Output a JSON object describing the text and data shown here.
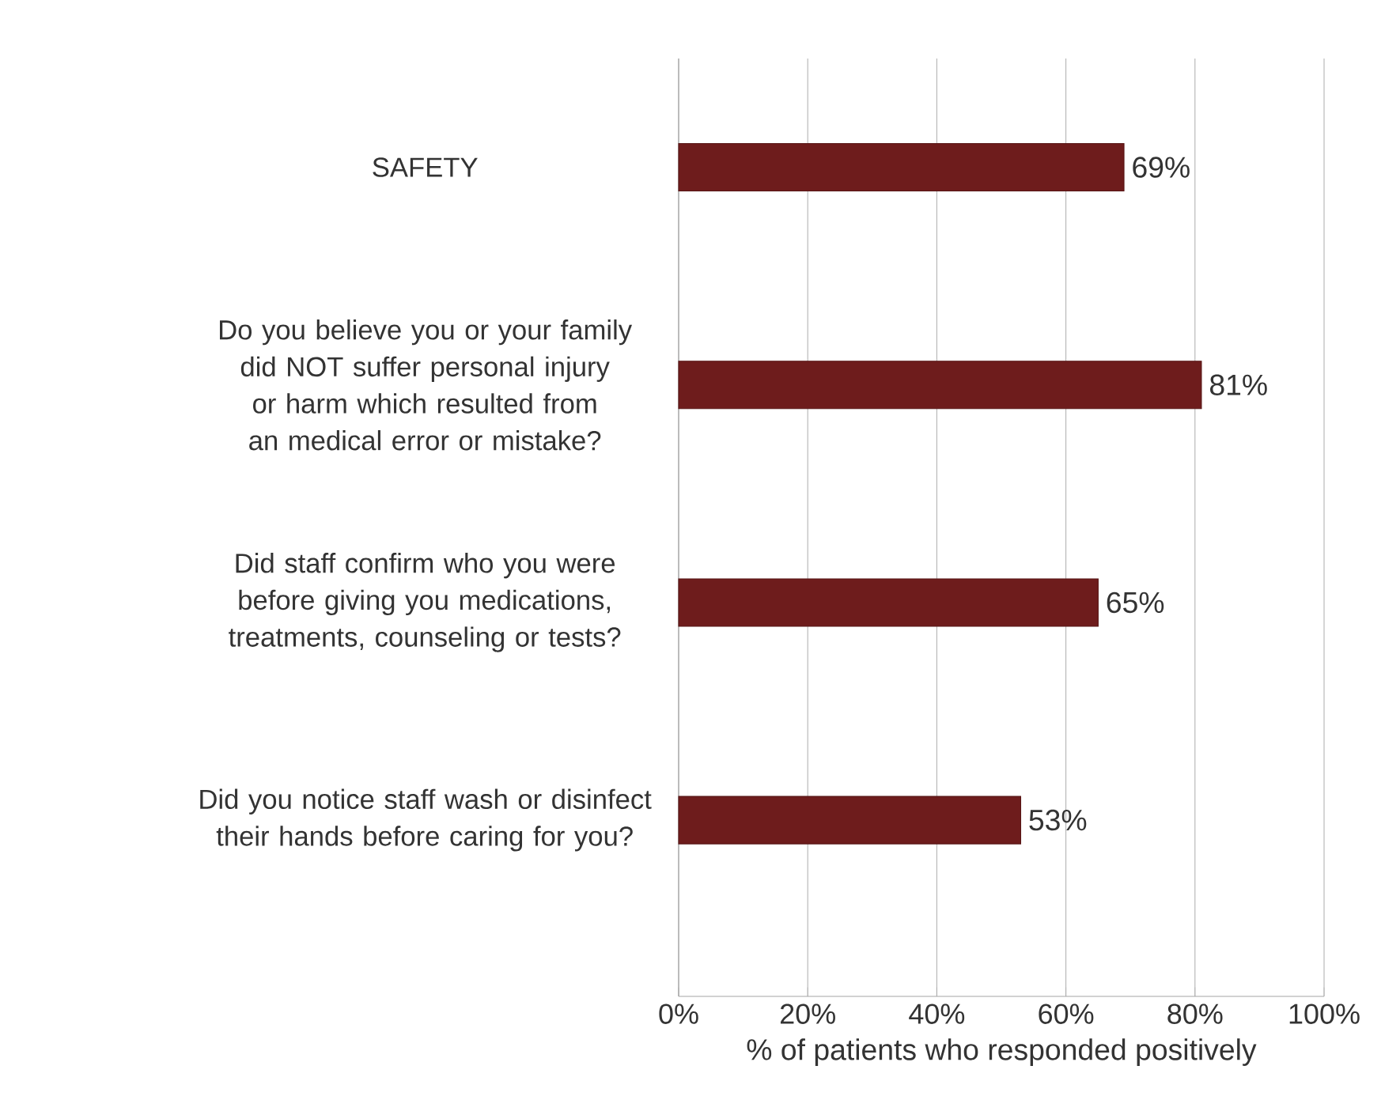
{
  "chart_data": {
    "type": "bar",
    "orientation": "horizontal",
    "xlabel": "% of patients who responded positively",
    "categories": [
      "SAFETY",
      "Do you believe you or your family did NOT suffer personal injury or harm which resulted from an medical error or mistake?",
      "Did staff confirm who you were before giving you medications, treatments, counseling or tests?",
      "Did you notice staff wash or disinfect their hands before caring for you?"
    ],
    "values": [
      69,
      81,
      65,
      53
    ],
    "color": "#6e1c1c",
    "value_labels": [
      "69%",
      "81%",
      "65%",
      "53%"
    ],
    "xlim": [
      0,
      100
    ],
    "xticks": [
      {
        "value": 0,
        "label": "0%"
      },
      {
        "value": 20,
        "label": "20%"
      },
      {
        "value": 40,
        "label": "40%"
      },
      {
        "value": 60,
        "label": "60%"
      },
      {
        "value": 80,
        "label": "80%"
      },
      {
        "value": 100,
        "label": "100%"
      }
    ],
    "grid": "x"
  }
}
